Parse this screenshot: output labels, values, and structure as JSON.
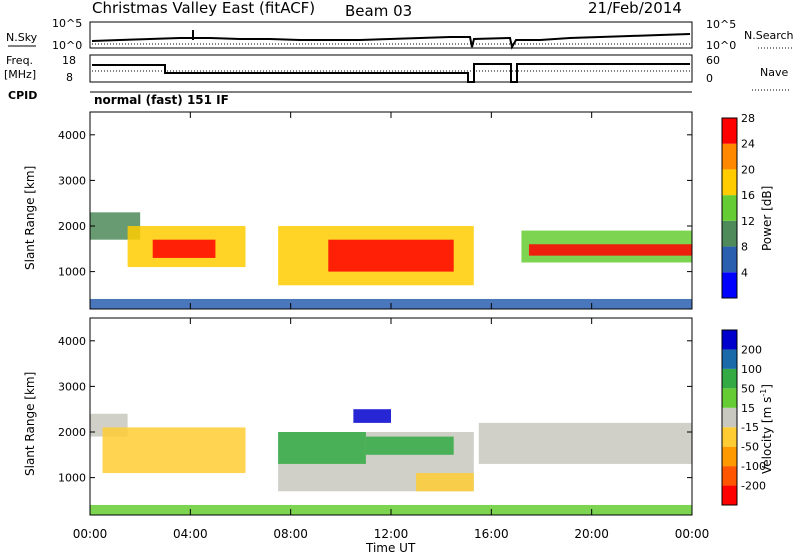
{
  "header": {
    "title": "Christmas Valley East (fitACF)",
    "beam": "Beam 03",
    "date": "21/Feb/2014"
  },
  "info_panels": {
    "nsky_label": "N.Sky",
    "nsearch_label": "N.Search",
    "freq_label": "Freq.",
    "freq_unit": "[MHz]",
    "nave_label": "Nave",
    "cpid_label": "CPID",
    "cpid_text": "normal (fast) 151 IF",
    "noise_left_ticks": [
      "10^5",
      "10^0"
    ],
    "noise_right_ticks": [
      "10^5",
      "10^0"
    ],
    "freq_ticks": [
      "18",
      "8"
    ],
    "nave_ticks": [
      "60",
      "0"
    ]
  },
  "x_axis": {
    "label": "Time UT",
    "ticks": [
      "00:00",
      "04:00",
      "08:00",
      "12:00",
      "16:00",
      "20:00",
      "00:00"
    ]
  },
  "power_colorbar": {
    "label": "Power [dB]",
    "ticks": [
      "28",
      "24",
      "20",
      "16",
      "12",
      "8",
      "4"
    ],
    "colors": [
      "#0000ff",
      "#2a5fb0",
      "#4f8a5a",
      "#66cc33",
      "#ffcc00",
      "#ff8800",
      "#ff0000"
    ]
  },
  "velocity_colorbar": {
    "label": "Velocity [m s",
    "label_sup": "-1",
    "label_close": "]",
    "ticks": [
      "200",
      "100",
      "50",
      "15",
      "-15",
      "-50",
      "-100",
      "-200"
    ],
    "colors": [
      "#ff0000",
      "#ff5500",
      "#ff9900",
      "#ffcc33",
      "#c8c8c0",
      "#66cc33",
      "#33aa44",
      "#1a6aaa",
      "#0000cc"
    ]
  },
  "chart_data": [
    {
      "type": "heatmap",
      "title": "Power",
      "ylabel": "Slant Range [km]",
      "xlabel": "",
      "x_range_hours": [
        0,
        24
      ],
      "ylim": [
        180,
        4500
      ],
      "yticks": [
        1000,
        2000,
        3000,
        4000
      ],
      "color_scale": "power_dB",
      "regions": [
        {
          "t0": 0.0,
          "t1": 2.0,
          "r0": 1700,
          "r1": 2300,
          "value": 12
        },
        {
          "t0": 1.5,
          "t1": 6.2,
          "r0": 1100,
          "r1": 2000,
          "value": 20
        },
        {
          "t0": 2.5,
          "t1": 5.0,
          "r0": 1300,
          "r1": 1700,
          "value": 26
        },
        {
          "t0": 7.5,
          "t1": 15.3,
          "r0": 700,
          "r1": 2000,
          "value": 18
        },
        {
          "t0": 9.5,
          "t1": 14.5,
          "r0": 1000,
          "r1": 1700,
          "value": 26
        },
        {
          "t0": 17.2,
          "t1": 24.0,
          "r0": 1200,
          "r1": 1900,
          "value": 14
        },
        {
          "t0": 17.5,
          "t1": 24.0,
          "r0": 1350,
          "r1": 1600,
          "value": 28
        },
        {
          "t0": 0.0,
          "t1": 24.0,
          "r0": 180,
          "r1": 400,
          "value": 6
        }
      ]
    },
    {
      "type": "heatmap",
      "title": "Velocity",
      "ylabel": "Slant Range [km]",
      "xlabel": "Time UT",
      "x_range_hours": [
        0,
        24
      ],
      "ylim": [
        180,
        4500
      ],
      "yticks": [
        1000,
        2000,
        3000,
        4000
      ],
      "color_scale": "velocity_m_s",
      "regions": [
        {
          "t0": 0.0,
          "t1": 1.5,
          "r0": 1900,
          "r1": 2400,
          "value": 0
        },
        {
          "t0": 0.5,
          "t1": 6.2,
          "r0": 1100,
          "r1": 2100,
          "value": -30
        },
        {
          "t0": 7.5,
          "t1": 15.3,
          "r0": 700,
          "r1": 2000,
          "value": 0
        },
        {
          "t0": 7.5,
          "t1": 11.0,
          "r0": 1300,
          "r1": 2000,
          "value": 70
        },
        {
          "t0": 11.0,
          "t1": 14.5,
          "r0": 1500,
          "r1": 1900,
          "value": 60
        },
        {
          "t0": 13.0,
          "t1": 15.3,
          "r0": 700,
          "r1": 1100,
          "value": -40
        },
        {
          "t0": 15.5,
          "t1": 24.0,
          "r0": 1300,
          "r1": 2200,
          "value": 0
        },
        {
          "t0": 10.5,
          "t1": 12.0,
          "r0": 2200,
          "r1": 2500,
          "value": 250
        },
        {
          "t0": 0.0,
          "t1": 24.0,
          "r0": 180,
          "r1": 400,
          "value": 40
        }
      ]
    }
  ]
}
